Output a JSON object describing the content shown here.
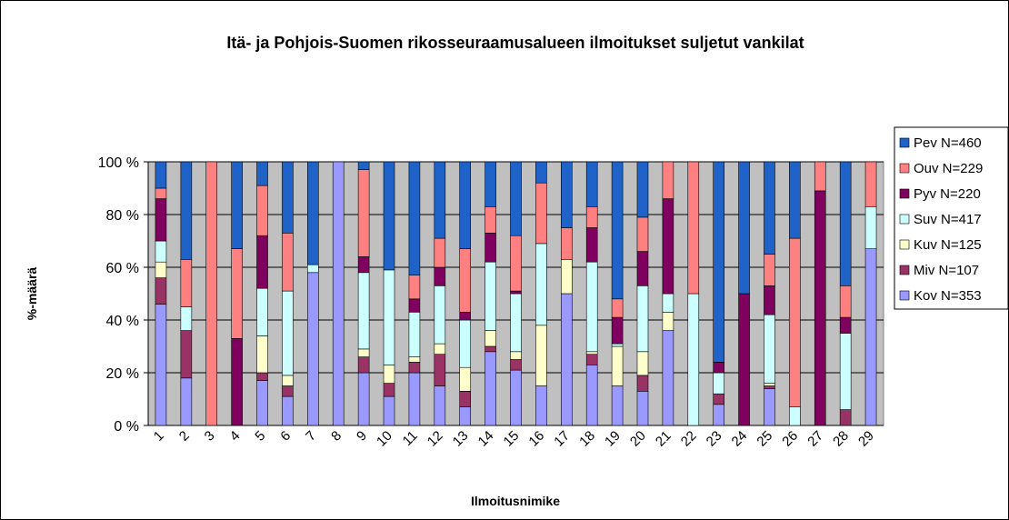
{
  "chart_data": {
    "type": "stacked_bar_percent",
    "title": "Itä- ja Pohjois-Suomen rikosseuraamusalueen ilmoitukset suljetut vankilat",
    "x_label": "Ilmoitusnimike",
    "y_label": "%-määrä",
    "categories": [
      "1",
      "2",
      "3",
      "4",
      "5",
      "6",
      "7",
      "8",
      "9",
      "10",
      "11",
      "12",
      "13",
      "14",
      "15",
      "16",
      "17",
      "18",
      "19",
      "20",
      "21",
      "22",
      "23",
      "24",
      "25",
      "26",
      "27",
      "28",
      "29"
    ],
    "ylim": [
      0,
      100
    ],
    "yticks": [
      {
        "value": 0,
        "label": "0 %"
      },
      {
        "value": 20,
        "label": "20 %"
      },
      {
        "value": 40,
        "label": "40 %"
      },
      {
        "value": 60,
        "label": "60 %"
      },
      {
        "value": 80,
        "label": "80 %"
      },
      {
        "value": 100,
        "label": "100 %"
      }
    ],
    "grid": true,
    "legend": "right",
    "series": [
      {
        "name": "Kov N=353",
        "color": "#9999ff",
        "values": [
          46,
          18,
          0,
          0,
          17,
          11,
          58,
          100,
          20,
          11,
          20,
          15,
          7,
          28,
          21,
          15,
          50,
          23,
          15,
          13,
          36,
          0,
          8,
          0,
          14,
          0,
          0,
          0,
          67
        ]
      },
      {
        "name": "Miv N=107",
        "color": "#993366",
        "values": [
          10,
          18,
          0,
          0,
          3,
          4,
          0,
          0,
          6,
          5,
          4,
          12,
          6,
          2,
          4,
          0,
          0,
          4,
          0,
          6,
          0,
          0,
          4,
          0,
          1,
          0,
          0,
          6,
          0
        ]
      },
      {
        "name": "Kuv N=125",
        "color": "#ffffcc",
        "values": [
          6,
          0,
          0,
          0,
          14,
          4,
          0,
          0,
          3,
          7,
          2,
          4,
          9,
          6,
          3,
          23,
          13,
          1,
          15,
          9,
          7,
          0,
          0,
          0,
          1,
          0,
          0,
          0,
          0
        ]
      },
      {
        "name": "Suv N=417",
        "color": "#ccffff",
        "values": [
          8,
          9,
          0,
          0,
          18,
          32,
          3,
          0,
          29,
          36,
          17,
          22,
          18,
          26,
          22,
          31,
          0,
          34,
          1,
          25,
          7,
          50,
          8,
          0,
          26,
          7,
          0,
          29,
          16
        ]
      },
      {
        "name": "Pyv N=220",
        "color": "#800060",
        "values": [
          16,
          0,
          0,
          33,
          20,
          0,
          0,
          0,
          6,
          0,
          5,
          7,
          3,
          11,
          1,
          0,
          0,
          13,
          10,
          13,
          36,
          0,
          4,
          50,
          11,
          0,
          89,
          6,
          0
        ]
      },
      {
        "name": "Ouv N=229",
        "color": "#ff8080",
        "values": [
          4,
          18,
          100,
          34,
          19,
          22,
          0,
          0,
          33,
          0,
          9,
          11,
          24,
          10,
          21,
          23,
          12,
          8,
          7,
          13,
          14,
          50,
          0,
          0,
          12,
          64,
          11,
          12,
          17
        ]
      },
      {
        "name": "Pev N=460",
        "color": "#1f62c8",
        "values": [
          10,
          37,
          0,
          33,
          9,
          27,
          39,
          0,
          3,
          41,
          43,
          29,
          33,
          17,
          28,
          8,
          25,
          17,
          52,
          21,
          0,
          0,
          76,
          50,
          35,
          29,
          0,
          47,
          0
        ]
      }
    ]
  }
}
